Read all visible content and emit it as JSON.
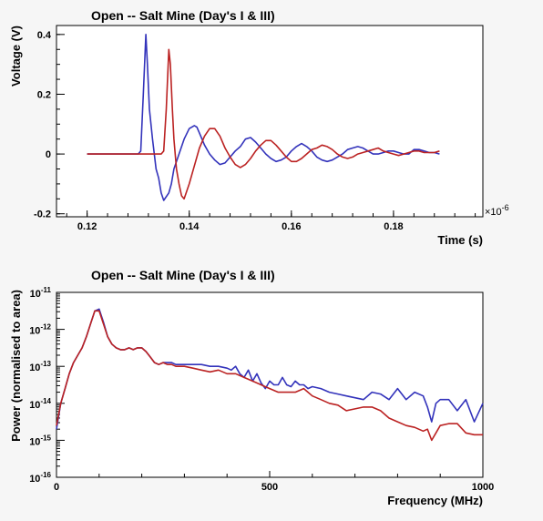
{
  "chart_data": [
    {
      "type": "line",
      "title": "Open -- Salt Mine (Day's I & III)",
      "xlabel": "Time (s)",
      "ylabel": "Voltage (V)",
      "x_multiplier_label": "×10",
      "x_multiplier_exp": "-6",
      "xlim": [
        0.114,
        0.1975
      ],
      "ylim": [
        -0.21,
        0.43
      ],
      "x_ticks": [
        0.12,
        0.14,
        0.16,
        0.18
      ],
      "x_tick_labels": [
        "0.12",
        "0.14",
        "0.16",
        "0.18"
      ],
      "y_ticks": [
        -0.2,
        0,
        0.2,
        0.4
      ],
      "y_tick_labels": [
        "-0.2",
        "0",
        "0.2",
        "0.4"
      ],
      "series": [
        {
          "color": "#3333bb",
          "x": [
            0.12,
            0.125,
            0.13,
            0.1305,
            0.131,
            0.1315,
            0.1318,
            0.1322,
            0.1328,
            0.1335,
            0.134,
            0.1345,
            0.135,
            0.136,
            0.1365,
            0.137,
            0.138,
            0.139,
            0.14,
            0.141,
            0.1415,
            0.142,
            0.143,
            0.144,
            0.145,
            0.146,
            0.147,
            0.148,
            0.149,
            0.15,
            0.151,
            0.152,
            0.153,
            0.154,
            0.155,
            0.156,
            0.157,
            0.158,
            0.159,
            0.16,
            0.161,
            0.162,
            0.163,
            0.164,
            0.165,
            0.166,
            0.167,
            0.168,
            0.169,
            0.17,
            0.171,
            0.172,
            0.173,
            0.174,
            0.175,
            0.176,
            0.177,
            0.178,
            0.179,
            0.18,
            0.181,
            0.182,
            0.183,
            0.184,
            0.185,
            0.186,
            0.187,
            0.188,
            0.189
          ],
          "y": [
            0.0,
            0.0,
            0.0,
            0.01,
            0.2,
            0.4,
            0.3,
            0.15,
            0.05,
            -0.05,
            -0.08,
            -0.13,
            -0.155,
            -0.13,
            -0.1,
            -0.05,
            0.0,
            0.05,
            0.085,
            0.095,
            0.09,
            0.07,
            0.03,
            0.0,
            -0.02,
            -0.035,
            -0.03,
            -0.01,
            0.01,
            0.025,
            0.05,
            0.055,
            0.04,
            0.02,
            0.0,
            -0.015,
            -0.025,
            -0.02,
            -0.01,
            0.01,
            0.025,
            0.035,
            0.025,
            0.01,
            -0.01,
            -0.02,
            -0.025,
            -0.02,
            -0.01,
            0.0,
            0.015,
            0.02,
            0.025,
            0.02,
            0.01,
            0.0,
            0.0,
            0.005,
            0.01,
            0.01,
            0.005,
            0.0,
            0.0,
            0.015,
            0.015,
            0.01,
            0.005,
            0.005,
            0.0
          ]
        },
        {
          "color": "#bb2222",
          "x": [
            0.12,
            0.125,
            0.13,
            0.1345,
            0.135,
            0.1355,
            0.136,
            0.1363,
            0.1367,
            0.137,
            0.1375,
            0.138,
            0.1385,
            0.139,
            0.14,
            0.141,
            0.142,
            0.143,
            0.144,
            0.145,
            0.146,
            0.147,
            0.148,
            0.149,
            0.15,
            0.151,
            0.152,
            0.153,
            0.154,
            0.155,
            0.156,
            0.157,
            0.158,
            0.159,
            0.16,
            0.161,
            0.162,
            0.163,
            0.164,
            0.165,
            0.166,
            0.167,
            0.168,
            0.169,
            0.17,
            0.171,
            0.172,
            0.173,
            0.174,
            0.175,
            0.176,
            0.177,
            0.178,
            0.179,
            0.18,
            0.181,
            0.182,
            0.183,
            0.184,
            0.185,
            0.186,
            0.187,
            0.188,
            0.189
          ],
          "y": [
            0.0,
            0.0,
            0.0,
            0.0,
            0.01,
            0.15,
            0.35,
            0.3,
            0.15,
            0.05,
            -0.05,
            -0.1,
            -0.14,
            -0.15,
            -0.1,
            -0.04,
            0.02,
            0.06,
            0.085,
            0.085,
            0.06,
            0.02,
            -0.01,
            -0.035,
            -0.045,
            -0.035,
            -0.015,
            0.01,
            0.03,
            0.045,
            0.045,
            0.03,
            0.01,
            -0.01,
            -0.025,
            -0.025,
            -0.015,
            0.0,
            0.015,
            0.02,
            0.03,
            0.025,
            0.015,
            0.0,
            -0.01,
            -0.015,
            -0.01,
            0.0,
            0.005,
            0.01,
            0.015,
            0.02,
            0.01,
            0.005,
            0.0,
            -0.005,
            0.0,
            0.005,
            0.01,
            0.01,
            0.005,
            0.005,
            0.005,
            0.01
          ]
        }
      ]
    },
    {
      "type": "line",
      "title": "Open -- Salt Mine (Day's I & III)",
      "xlabel": "Frequency (MHz)",
      "ylabel": "Power (normalised to area)",
      "xlim": [
        0,
        1000
      ],
      "ylim": [
        -16,
        -11
      ],
      "y_scale": "log",
      "x_ticks": [
        0,
        500,
        1000
      ],
      "x_tick_labels": [
        "0",
        "500",
        "1000"
      ],
      "y_ticks": [
        -16,
        -15,
        -14,
        -13,
        -12,
        -11
      ],
      "y_tick_base": "10",
      "y_tick_exps": [
        "-16",
        "-15",
        "-14",
        "-13",
        "-12",
        "-11"
      ],
      "series": [
        {
          "color": "#3333bb",
          "x": [
            0,
            10,
            20,
            30,
            40,
            50,
            60,
            70,
            80,
            90,
            100,
            110,
            120,
            130,
            140,
            150,
            160,
            170,
            180,
            190,
            200,
            210,
            220,
            230,
            240,
            250,
            260,
            270,
            280,
            290,
            300,
            320,
            340,
            360,
            380,
            400,
            410,
            420,
            430,
            440,
            450,
            460,
            470,
            480,
            490,
            500,
            510,
            520,
            530,
            540,
            550,
            560,
            570,
            580,
            590,
            600,
            620,
            640,
            660,
            680,
            700,
            720,
            740,
            760,
            780,
            800,
            820,
            840,
            860,
            870,
            880,
            890,
            900,
            920,
            940,
            960,
            980,
            1000
          ],
          "y": [
            -14.7,
            -14.0,
            -13.6,
            -13.2,
            -12.9,
            -12.7,
            -12.5,
            -12.2,
            -11.85,
            -11.5,
            -11.45,
            -11.8,
            -12.2,
            -12.4,
            -12.5,
            -12.55,
            -12.55,
            -12.5,
            -12.55,
            -12.5,
            -12.5,
            -12.6,
            -12.75,
            -12.9,
            -12.95,
            -12.9,
            -12.9,
            -12.9,
            -12.95,
            -12.95,
            -12.95,
            -12.95,
            -12.95,
            -13.0,
            -13.0,
            -13.05,
            -13.1,
            -13.0,
            -13.2,
            -13.3,
            -13.1,
            -13.4,
            -13.2,
            -13.45,
            -13.6,
            -13.4,
            -13.5,
            -13.5,
            -13.3,
            -13.5,
            -13.55,
            -13.4,
            -13.5,
            -13.5,
            -13.6,
            -13.55,
            -13.6,
            -13.7,
            -13.75,
            -13.8,
            -13.85,
            -13.9,
            -13.7,
            -13.75,
            -13.9,
            -13.6,
            -13.9,
            -13.7,
            -13.8,
            -14.1,
            -14.5,
            -14.0,
            -13.9,
            -13.9,
            -14.2,
            -13.9,
            -14.5,
            -14.0
          ]
        },
        {
          "color": "#bb2222",
          "x": [
            0,
            10,
            20,
            30,
            40,
            50,
            60,
            70,
            80,
            90,
            100,
            110,
            120,
            130,
            140,
            150,
            160,
            170,
            180,
            190,
            200,
            210,
            220,
            230,
            240,
            250,
            260,
            270,
            280,
            290,
            300,
            320,
            340,
            360,
            380,
            400,
            420,
            440,
            460,
            480,
            500,
            520,
            540,
            560,
            580,
            600,
            620,
            640,
            660,
            680,
            700,
            720,
            740,
            760,
            780,
            800,
            820,
            840,
            860,
            870,
            880,
            890,
            900,
            920,
            940,
            960,
            980,
            1000
          ],
          "y": [
            -14.6,
            -14.0,
            -13.6,
            -13.2,
            -12.9,
            -12.7,
            -12.5,
            -12.2,
            -11.85,
            -11.5,
            -11.5,
            -11.85,
            -12.2,
            -12.4,
            -12.5,
            -12.55,
            -12.55,
            -12.5,
            -12.55,
            -12.5,
            -12.5,
            -12.6,
            -12.75,
            -12.9,
            -12.95,
            -12.9,
            -12.95,
            -12.95,
            -13.0,
            -13.0,
            -13.0,
            -13.05,
            -13.1,
            -13.15,
            -13.1,
            -13.2,
            -13.2,
            -13.3,
            -13.4,
            -13.5,
            -13.6,
            -13.7,
            -13.7,
            -13.7,
            -13.6,
            -13.8,
            -13.9,
            -14.0,
            -14.05,
            -14.2,
            -14.15,
            -14.1,
            -14.1,
            -14.2,
            -14.4,
            -14.5,
            -14.6,
            -14.65,
            -14.75,
            -14.7,
            -15.0,
            -14.8,
            -14.6,
            -14.55,
            -14.55,
            -14.8,
            -14.85,
            -14.85
          ]
        }
      ]
    }
  ]
}
